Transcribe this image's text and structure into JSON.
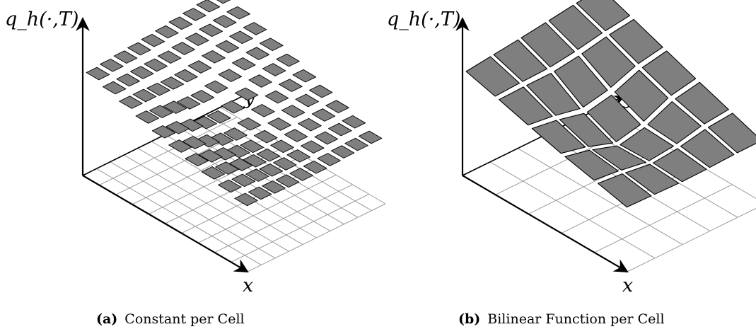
{
  "panels": [
    {
      "id": "a",
      "z_axis_label": "q_h(·,T)",
      "x_axis_label": "x",
      "y_axis_label": "y",
      "caption_tag": "(a)",
      "caption_text": "Constant per Cell",
      "variant": "constant"
    },
    {
      "id": "b",
      "z_axis_label": "q_h(·,T)",
      "x_axis_label": "x",
      "y_axis_label": "y",
      "caption_tag": "(b)",
      "caption_text": "Bilinear Function per Cell",
      "variant": "bilinear"
    }
  ],
  "colors": {
    "patch_fill": "#7f7f7f",
    "patch_stroke": "#000000",
    "grid": "#9a9a9a",
    "axis": "#000000"
  }
}
